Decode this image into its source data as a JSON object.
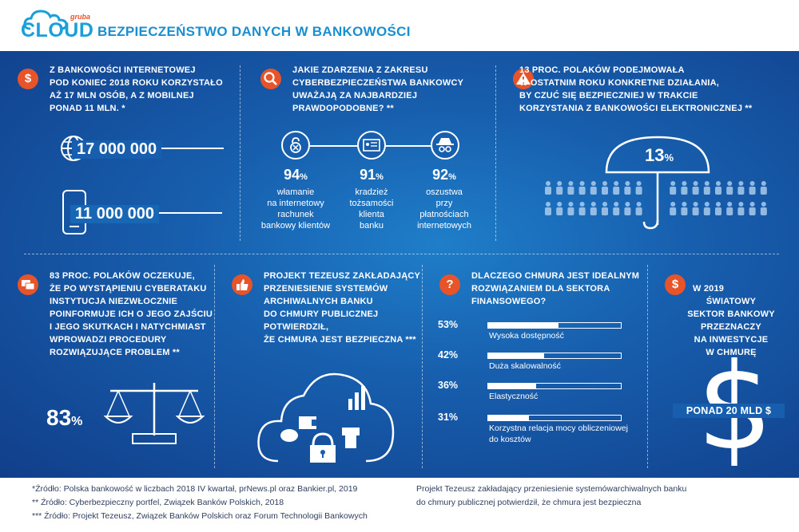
{
  "header": {
    "logo_small": "gruba",
    "logo_main": "CLOUD",
    "title": "BEZPIECZEŃSTWO DANYCH W BANKOWOŚCI"
  },
  "top_left": {
    "icon": "dollar-icon",
    "lines": [
      "Z BANKOWOŚCI INTERNETOWEJ",
      "POD KONIEC 2018 ROKU KORZYSTAŁO",
      "AŻ 17 MLN OSÓB, A Z MOBILNEJ",
      "PONAD 11 MLN. *"
    ],
    "internet_value": "17 000 000",
    "mobile_value": "11 000 000"
  },
  "top_middle": {
    "icon": "search-icon",
    "lines": [
      "JAKIE ZDARZENIA Z ZAKRESU",
      "CYBERBEZPIECZEŃSTWA BANKOWCY",
      "UWAŻAJĄ ZA NAJBARDZIEJ",
      "PRAWDOPODOBNE? **"
    ],
    "items": [
      {
        "value": "94",
        "unit": "%",
        "lines": [
          "włamanie",
          "na internetowy",
          "rachunek",
          "bankowy klientów"
        ]
      },
      {
        "value": "91",
        "unit": "%",
        "lines": [
          "kradzież",
          "tożsamości",
          "klienta",
          "banku"
        ]
      },
      {
        "value": "92",
        "unit": "%",
        "lines": [
          "oszustwa",
          "przy",
          "płatnościach",
          "internetowych"
        ]
      }
    ]
  },
  "top_right": {
    "icon": "warning-icon",
    "lines": [
      "13 PROC. POLAKÓW PODEJMOWAŁA",
      "W OSTATNIM ROKU KONKRETNE DZIAŁANIA,",
      "BY CZUĆ SIĘ BEZPIECZNIEJ W TRAKCIE",
      "KORZYSTANIA Z BANKOWOŚCI ELEKTRONICZNEJ **"
    ],
    "umbrella_value": "13",
    "umbrella_unit": "%"
  },
  "bottom_left": {
    "icon": "chat-icon",
    "lines": [
      "83 PROC. POLAKÓW OCZEKUJE,",
      "ŻE PO WYSTĄPIENIU CYBERATAKU",
      "INSTYTUCJA NIEZWŁOCZNIE",
      "POINFORMUJE ICH O JEGO ZAJŚCIU",
      "I JEGO SKUTKACH I NATYCHMIAST",
      "WPROWADZI PROCEDURY",
      "ROZWIĄZUJĄCE PROBLEM **"
    ],
    "value": "83",
    "unit": "%"
  },
  "bottom_second": {
    "icon": "thumbs-up-icon",
    "lines": [
      "PROJEKT TEZEUSZ ZAKŁADAJĄCY",
      "PRZENIESIENIE SYSTEMÓW",
      "ARCHIWALNYCH BANKU",
      "DO CHMURY PUBLICZNEJ",
      "POTWIERDZIŁ,",
      "ŻE CHMURA JEST BEZPIECZNA ***"
    ]
  },
  "bottom_third": {
    "icon": "question-icon",
    "lines": [
      "DLACZEGO CHMURA JEST IDEALNYM",
      "ROZWIĄZANIEM DLA SEKTORA",
      "FINANSOWEGO?"
    ],
    "bars": [
      {
        "pct_label": "53%",
        "value": 53,
        "label_lines": [
          "Wysoka dostępność"
        ]
      },
      {
        "pct_label": "42%",
        "value": 42,
        "label_lines": [
          "Duża skalowalność"
        ]
      },
      {
        "pct_label": "36%",
        "value": 36,
        "label_lines": [
          "Elastyczność"
        ]
      },
      {
        "pct_label": "31%",
        "value": 31,
        "label_lines": [
          "Korzystna relacja mocy obliczeniowej",
          "do kosztów"
        ]
      }
    ]
  },
  "bottom_right": {
    "icon": "dollar-icon",
    "lines": [
      "W 2019",
      "ŚWIATOWY",
      "SEKTOR BANKOWY",
      "PRZEZNACZY",
      "NA INWESTYCJE",
      "W CHMURĘ"
    ],
    "amount": "PONAD 20 MLD $"
  },
  "footer": {
    "sources": [
      "*Źródło: Polska bankowość w liczbach 2018 IV kwartał, prNews.pl oraz Bankier.pl, 2019",
      "** Źródło: Cyberbezpieczny portfel, Związek Banków Polskich, 2018",
      "*** Źródło: Projekt Tezeusz, Związek Banków Polskich oraz Forum Technologii Bankowych"
    ],
    "note_lines": [
      "Projekt Tezeusz zakładający przeniesienie systemówarchiwalnych banku",
      "do chmury publicznej potwierdził, że chmura jest bezpieczna"
    ]
  }
}
